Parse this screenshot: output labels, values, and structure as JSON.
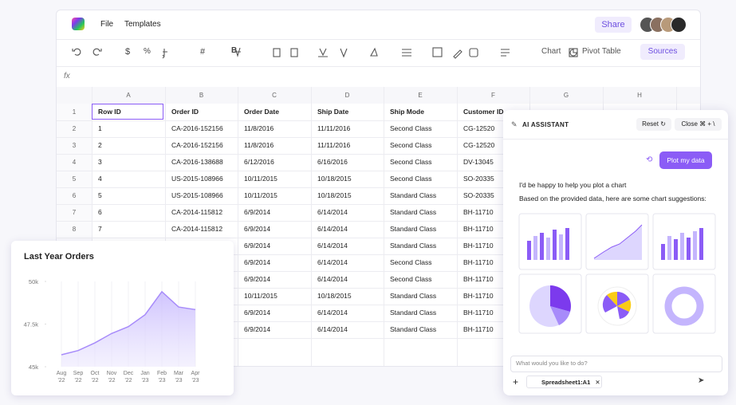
{
  "app": {
    "menu": [
      "File",
      "Templates"
    ],
    "share": "Share"
  },
  "toolbar": {
    "symbols": [
      "$",
      "%",
      "#"
    ],
    "chart": "Chart",
    "pivot_table": "Pivot Table",
    "sources": "Sources"
  },
  "formula_bar": {
    "label": "fx"
  },
  "sheet": {
    "columns": [
      "A",
      "B",
      "C",
      "D",
      "E",
      "F",
      "G",
      "H"
    ],
    "row_numbers": [
      "1",
      "2",
      "3",
      "4",
      "5",
      "6",
      "7",
      "8",
      null,
      null,
      null,
      null,
      null,
      null
    ],
    "rows": [
      [
        "Row ID",
        "Order ID",
        "Order Date",
        "Ship Date",
        "Ship Mode",
        "Customer ID"
      ],
      [
        "1",
        "CA-2016-152156",
        "11/8/2016",
        "11/11/2016",
        "Second Class",
        "CG-12520"
      ],
      [
        "2",
        "CA-2016-152156",
        "11/8/2016",
        "11/11/2016",
        "Second Class",
        "CG-12520"
      ],
      [
        "3",
        "CA-2016-138688",
        "6/12/2016",
        "6/16/2016",
        "Second Class",
        "DV-13045"
      ],
      [
        "4",
        "US-2015-108966",
        "10/11/2015",
        "10/18/2015",
        "Second Class",
        "SO-20335"
      ],
      [
        "5",
        "US-2015-108966",
        "10/11/2015",
        "10/18/2015",
        "Standard Class",
        "SO-20335"
      ],
      [
        "6",
        "CA-2014-115812",
        "6/9/2014",
        "6/14/2014",
        "Standard Class",
        "BH-11710"
      ],
      [
        "7",
        "CA-2014-115812",
        "6/9/2014",
        "6/14/2014",
        "Standard Class",
        "BH-11710"
      ],
      [
        null,
        null,
        "6/9/2014",
        "6/14/2014",
        "Standard Class",
        "BH-11710"
      ],
      [
        null,
        null,
        "6/9/2014",
        "6/14/2014",
        "Second Class",
        "BH-11710"
      ],
      [
        null,
        null,
        "6/9/2014",
        "6/14/2014",
        "Second Class",
        "BH-11710"
      ],
      [
        null,
        null,
        "10/11/2015",
        "10/18/2015",
        "Standard Class",
        "BH-11710"
      ],
      [
        null,
        null,
        "6/9/2014",
        "6/14/2014",
        "Standard Class",
        "BH-11710"
      ],
      [
        null,
        null,
        "6/9/2014",
        "6/14/2014",
        "Standard Class",
        "BH-11710"
      ]
    ]
  },
  "chart": {
    "type": "area",
    "title": "Last Year Orders",
    "categories": [
      "Aug\n'22",
      "Sep\n'22",
      "Oct\n'22",
      "Nov\n'22",
      "Dec\n'22",
      "Jan\n'23",
      "Feb\n'23",
      "Mar\n'23",
      "Apr\n'23"
    ],
    "values": [
      45700,
      45950,
      46400,
      46950,
      47350,
      48050,
      49400,
      48500,
      48350
    ],
    "color": "#a78bfa",
    "ylim": [
      45000,
      50000
    ],
    "yticks": [
      {
        "value": 45000,
        "label": "45k"
      },
      {
        "value": 47500,
        "label": "47.5k"
      },
      {
        "value": 50000,
        "label": "50k"
      }
    ]
  },
  "assistant": {
    "title": "AI ASSISTANT",
    "reset": "Reset",
    "close": "Close",
    "shortcut": "⌘ + \\",
    "prompt": "Plot my data",
    "messages": [
      "I'd be happy to help you plot a chart",
      "Based on the provided data, here are some chart suggestions:"
    ],
    "placeholder": "What would you like to do?",
    "chip": "Spreadsheet1:A1"
  }
}
